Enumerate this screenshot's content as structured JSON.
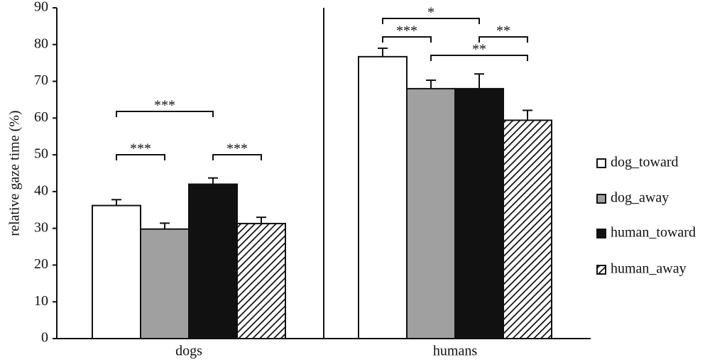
{
  "chart_data": {
    "type": "bar",
    "y_label": "relative gaze time (%)",
    "categories": [
      "dogs",
      "humans"
    ],
    "series": [
      {
        "name": "dog_toward",
        "color": "#ffffff",
        "values": [
          36.2,
          76.7
        ],
        "errors": [
          1.6,
          2.3
        ]
      },
      {
        "name": "dog_away",
        "color": "#a0a0a0",
        "values": [
          29.8,
          68
        ],
        "errors": [
          1.6,
          2.3
        ]
      },
      {
        "name": "human_toward",
        "color": "#111111",
        "values": [
          42,
          68
        ],
        "errors": [
          1.7,
          4
        ]
      },
      {
        "name": "human_away",
        "color": "#ffffff",
        "hatch": true,
        "values": [
          31.3,
          59.4
        ],
        "errors": [
          1.7,
          2.7
        ]
      }
    ],
    "ylim": [
      0,
      90
    ],
    "yticks": [
      0,
      10,
      20,
      30,
      40,
      50,
      60,
      70,
      80,
      90
    ],
    "legend": "right",
    "annotations": [
      {
        "group": 0,
        "from": 0,
        "to": 2,
        "label": "***"
      },
      {
        "group": 0,
        "from": 0,
        "to": 1,
        "label": "***"
      },
      {
        "group": 0,
        "from": 2,
        "to": 3,
        "label": "***"
      },
      {
        "group": 1,
        "from": 0,
        "to": 2,
        "label": "*"
      },
      {
        "group": 1,
        "from": 0,
        "to": 1,
        "label": "***"
      },
      {
        "group": 1,
        "from": 2,
        "to": 3,
        "label": "**"
      },
      {
        "group": 1,
        "from": 1,
        "to": 3,
        "label": "**"
      }
    ]
  }
}
